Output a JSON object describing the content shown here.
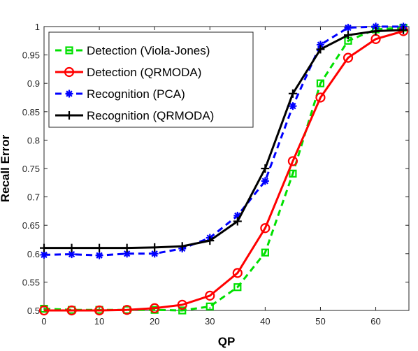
{
  "chart_data": {
    "type": "line",
    "xlabel": "QP",
    "ylabel": "Recall Error",
    "xlim": [
      0,
      66
    ],
    "ylim": [
      0.5,
      1.0
    ],
    "xticks": [
      "0",
      "10",
      "20",
      "30",
      "40",
      "50",
      "60"
    ],
    "yticks": [
      "0.5",
      "0.55",
      "0.6",
      "0.65",
      "0.7",
      "0.75",
      "0.8",
      "0.85",
      "0.9",
      "0.95",
      "1"
    ],
    "grid": false,
    "legend_position": "top-left",
    "x": [
      0,
      5,
      10,
      15,
      20,
      25,
      30,
      35,
      40,
      45,
      50,
      55,
      60,
      65
    ],
    "series": [
      {
        "name": "Detection (Viola-Jones)",
        "color": "#00e000",
        "line": "dashed",
        "marker": "square",
        "values": [
          0.503,
          0.501,
          0.501,
          0.501,
          0.501,
          0.5,
          0.507,
          0.541,
          0.602,
          0.741,
          0.9,
          0.975,
          0.995,
          0.998
        ]
      },
      {
        "name": "Detection (QRMODA)",
        "color": "#ff0000",
        "line": "solid",
        "marker": "circle",
        "values": [
          0.5,
          0.5,
          0.5,
          0.501,
          0.504,
          0.51,
          0.526,
          0.566,
          0.645,
          0.763,
          0.875,
          0.945,
          0.978,
          0.992
        ]
      },
      {
        "name": "Recognition (PCA)",
        "color": "#0000ff",
        "line": "dashed",
        "marker": "asterisk",
        "values": [
          0.598,
          0.599,
          0.597,
          0.6,
          0.6,
          0.609,
          0.628,
          0.667,
          0.728,
          0.86,
          0.968,
          0.998,
          1.0,
          1.0
        ]
      },
      {
        "name": "Recognition (QRMODA)",
        "color": "#000000",
        "line": "solid",
        "marker": "plus",
        "values": [
          0.61,
          0.61,
          0.61,
          0.61,
          0.611,
          0.613,
          0.623,
          0.657,
          0.75,
          0.882,
          0.96,
          0.985,
          0.992,
          0.994
        ]
      }
    ]
  }
}
